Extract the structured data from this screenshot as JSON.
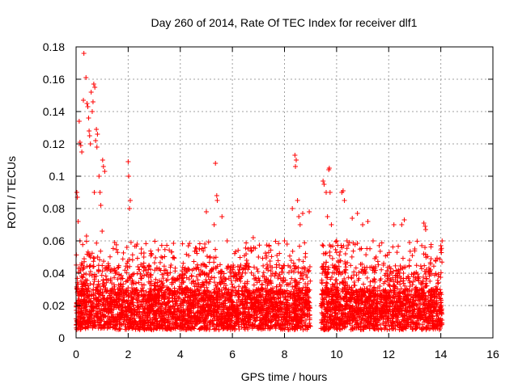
{
  "chart_data": {
    "type": "scatter",
    "title": "Day 260 of 2014, Rate Of TEC Index for receiver dlf1",
    "xlabel": "GPS time / hours",
    "ylabel": "ROTI / TECUs",
    "xlim": [
      0,
      16
    ],
    "ylim": [
      0,
      0.18
    ],
    "grid": true,
    "x_ticks": [
      "0",
      "2",
      "4",
      "6",
      "8",
      "10",
      "12",
      "14",
      "16"
    ],
    "y_ticks": [
      "0",
      "0.02",
      "0.04",
      "0.06",
      "0.08",
      "0.1",
      "0.12",
      "0.14",
      "0.16",
      "0.18"
    ],
    "marker": "+",
    "color": "#ff0000",
    "series": [
      {
        "name": "dlf1",
        "x_coverage": [
          [
            0.0,
            9.0
          ],
          [
            9.4,
            14.05
          ]
        ],
        "typical_range": [
          0.005,
          0.03
        ],
        "points": [
          [
            0.03,
            0.09
          ],
          [
            0.05,
            0.087
          ],
          [
            0.08,
            0.072
          ],
          [
            0.12,
            0.134
          ],
          [
            0.15,
            0.121
          ],
          [
            0.18,
            0.119
          ],
          [
            0.22,
            0.115
          ],
          [
            0.28,
            0.147
          ],
          [
            0.3,
            0.176
          ],
          [
            0.38,
            0.161
          ],
          [
            0.42,
            0.145
          ],
          [
            0.45,
            0.143
          ],
          [
            0.48,
            0.136
          ],
          [
            0.5,
            0.128
          ],
          [
            0.52,
            0.125
          ],
          [
            0.55,
            0.12
          ],
          [
            0.58,
            0.152
          ],
          [
            0.62,
            0.14
          ],
          [
            0.65,
            0.146
          ],
          [
            0.68,
            0.157
          ],
          [
            0.72,
            0.155
          ],
          [
            0.75,
            0.122
          ],
          [
            0.78,
            0.129
          ],
          [
            0.8,
            0.118
          ],
          [
            0.82,
            0.126
          ],
          [
            0.88,
            0.1
          ],
          [
            0.92,
            0.09
          ],
          [
            0.95,
            0.082
          ],
          [
            1.02,
            0.11
          ],
          [
            1.05,
            0.106
          ],
          [
            1.1,
            0.103
          ],
          [
            0.4,
            0.063
          ],
          [
            0.7,
            0.09
          ],
          [
            1.0,
            0.066
          ],
          [
            0.15,
            0.06
          ],
          [
            0.55,
            0.05
          ],
          [
            2.0,
            0.109
          ],
          [
            2.02,
            0.1
          ],
          [
            2.05,
            0.08
          ],
          [
            2.08,
            0.085
          ],
          [
            1.95,
            0.056
          ],
          [
            2.6,
            0.05
          ],
          [
            3.0,
            0.03
          ],
          [
            5.0,
            0.078
          ],
          [
            5.35,
            0.108
          ],
          [
            5.4,
            0.088
          ],
          [
            5.42,
            0.085
          ],
          [
            5.3,
            0.07
          ],
          [
            5.6,
            0.075
          ],
          [
            5.8,
            0.06
          ],
          [
            4.8,
            0.045
          ],
          [
            6.8,
            0.062
          ],
          [
            6.6,
            0.055
          ],
          [
            7.0,
            0.05
          ],
          [
            7.8,
            0.045
          ],
          [
            8.4,
            0.113
          ],
          [
            8.45,
            0.11
          ],
          [
            8.42,
            0.106
          ],
          [
            8.5,
            0.085
          ],
          [
            8.3,
            0.08
          ],
          [
            8.55,
            0.075
          ],
          [
            8.7,
            0.077
          ],
          [
            8.95,
            0.078
          ],
          [
            8.6,
            0.07
          ],
          [
            8.0,
            0.06
          ],
          [
            8.1,
            0.058
          ],
          [
            8.8,
            0.05
          ],
          [
            9.48,
            0.097
          ],
          [
            9.52,
            0.095
          ],
          [
            9.7,
            0.104
          ],
          [
            9.72,
            0.105
          ],
          [
            9.75,
            0.09
          ],
          [
            9.6,
            0.09
          ],
          [
            9.65,
            0.075
          ],
          [
            9.8,
            0.07
          ],
          [
            10.0,
            0.06
          ],
          [
            10.2,
            0.09
          ],
          [
            10.25,
            0.091
          ],
          [
            10.3,
            0.085
          ],
          [
            10.4,
            0.06
          ],
          [
            10.6,
            0.074
          ],
          [
            10.8,
            0.077
          ],
          [
            11.0,
            0.07
          ],
          [
            11.2,
            0.072
          ],
          [
            11.4,
            0.06
          ],
          [
            12.2,
            0.07
          ],
          [
            12.5,
            0.07
          ],
          [
            12.6,
            0.073
          ],
          [
            13.0,
            0.055
          ],
          [
            13.35,
            0.071
          ],
          [
            13.4,
            0.069
          ],
          [
            13.42,
            0.067
          ],
          [
            13.8,
            0.048
          ],
          [
            14.0,
            0.057
          ],
          [
            14.05,
            0.06
          ],
          [
            11.8,
            0.045
          ],
          [
            12.8,
            0.048
          ]
        ]
      }
    ]
  }
}
